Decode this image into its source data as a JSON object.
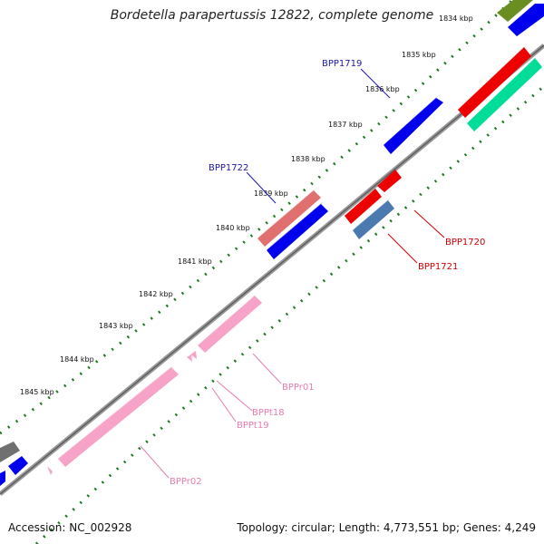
{
  "title": "Bordetella parapertussis 12822, complete genome",
  "footer": {
    "accession": "Accession: NC_002928",
    "topology": "Topology: circular; Length: 4,773,551 bp; Genes: 4,249"
  },
  "colors": {
    "backbone": "#808080",
    "tick": "#1f7a1f",
    "label_blue": "#1a1aa6",
    "label_red": "#cc0000",
    "label_pink": "#e87cb0",
    "cds_blue": "#0000ee",
    "cds_red": "#ee0000",
    "cds_salmon": "#e07070",
    "cds_steel": "#4a7ab0",
    "cds_green": "#00dd99",
    "cds_olive": "#6b8e23",
    "cds_gray": "#707070",
    "rna_pink": "#f7a3c8"
  },
  "kbp_labels": [
    "1834 kbp",
    "1835 kbp",
    "1836 kbp",
    "1837 kbp",
    "1838 kbp",
    "1839 kbp",
    "1840 kbp",
    "1841 kbp",
    "1842 kbp",
    "1843 kbp",
    "1844 kbp",
    "1845 kbp"
  ],
  "gene_labels": {
    "bpp1719": "BPP1719",
    "bpp1720": "BPP1720",
    "bpp1721": "BPP1721",
    "bpp1722": "BPP1722",
    "bppr01": "BPPr01",
    "bppr02": "BPPr02",
    "bppt18": "BPPt18",
    "bppt19": "BPPt19"
  }
}
